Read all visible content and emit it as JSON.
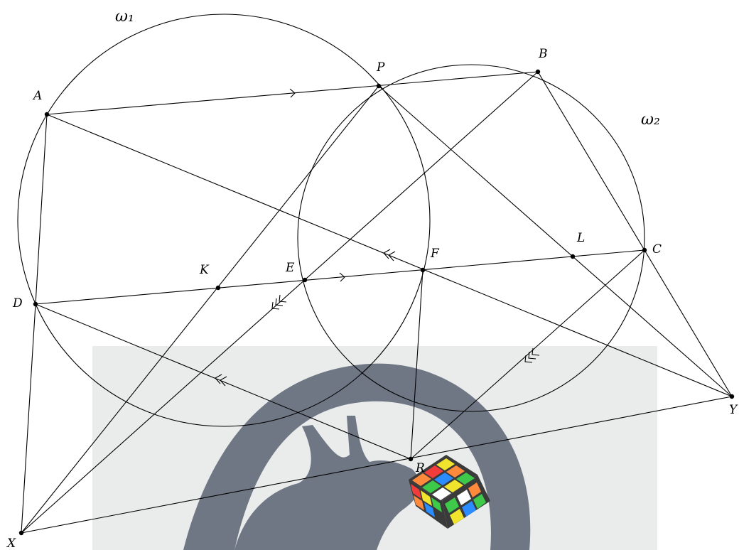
{
  "diagram": {
    "circles": [
      {
        "id": "omega1",
        "label": "ω₁"
      },
      {
        "id": "omega2",
        "label": "ω₂"
      }
    ],
    "points": [
      {
        "id": "A",
        "label": "A"
      },
      {
        "id": "P",
        "label": "P"
      },
      {
        "id": "B",
        "label": "B"
      },
      {
        "id": "C",
        "label": "C"
      },
      {
        "id": "D",
        "label": "D"
      },
      {
        "id": "E",
        "label": "E"
      },
      {
        "id": "F",
        "label": "F"
      },
      {
        "id": "K",
        "label": "K"
      },
      {
        "id": "L",
        "label": "L"
      },
      {
        "id": "R",
        "label": "R"
      },
      {
        "id": "X",
        "label": "X"
      },
      {
        "id": "Y",
        "label": "Y"
      }
    ],
    "segments": [
      [
        "A",
        "B"
      ],
      [
        "D",
        "C"
      ],
      [
        "A",
        "D"
      ],
      [
        "A",
        "Y"
      ],
      [
        "D",
        "R"
      ],
      [
        "B",
        "X"
      ],
      [
        "C",
        "R"
      ],
      [
        "P",
        "X"
      ],
      [
        "P",
        "Y"
      ],
      [
        "B",
        "C"
      ],
      [
        "C",
        "Y"
      ],
      [
        "F",
        "R"
      ],
      [
        "D",
        "X"
      ],
      [
        "X",
        "Y"
      ]
    ],
    "parallel_marks": [
      {
        "segments": [
          "AB",
          "DC"
        ],
        "marks": 1
      },
      {
        "segments": [
          "AY",
          "DR"
        ],
        "marks": 2
      },
      {
        "segments": [
          "BX",
          "CR"
        ],
        "marks": 3
      }
    ]
  },
  "watermark": {
    "bg_color": "#e9eceb",
    "figure_color": "#6f7684"
  }
}
